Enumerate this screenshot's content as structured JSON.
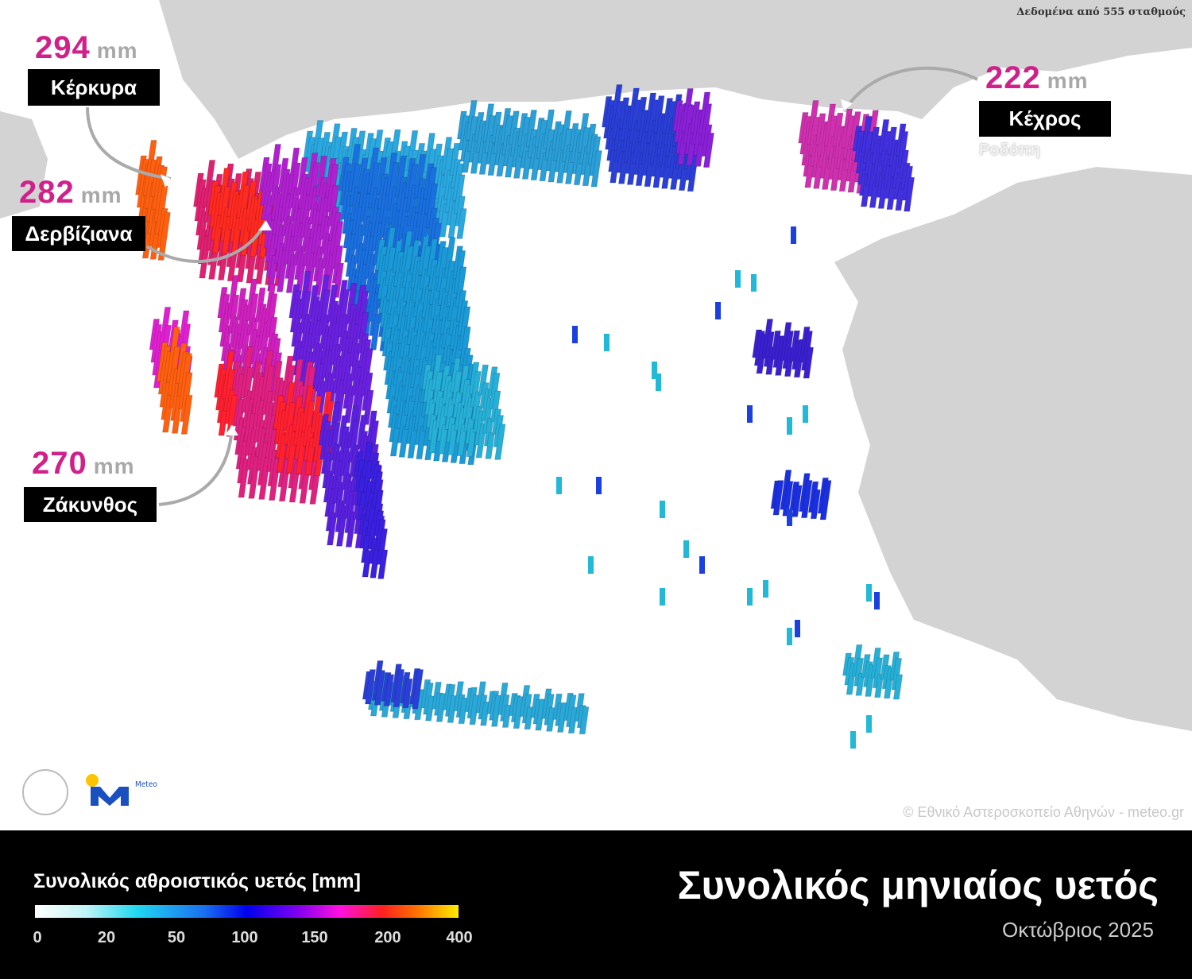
{
  "source_note": "Δεδομένα από 555 σταθμούς",
  "copyright": "© Εθνικό Αστεροσκοπείο Αθηνών - meteo.gr",
  "callouts": [
    {
      "value": "294",
      "unit": "mm",
      "station": "Κέρκυρα"
    },
    {
      "value": "282",
      "unit": "mm",
      "station": "Δερβίζιανα"
    },
    {
      "value": "270",
      "unit": "mm",
      "station": "Ζάκυνθος"
    },
    {
      "value": "222",
      "unit": "mm",
      "station": "Κέχρος",
      "region": "Ροδόπη"
    }
  ],
  "legend": {
    "title": "Συνολικός αθροιστικός υετός [mm]",
    "ticks": [
      "0",
      "20",
      "50",
      "100",
      "150",
      "200",
      "400"
    ],
    "colors": [
      "#ffffff",
      "#20d8f0",
      "#1a6ff0",
      "#0000ee",
      "#8000f0",
      "#ff10e0",
      "#ff2020",
      "#ff7000",
      "#ffee00"
    ]
  },
  "title": "Συνολικός μηνιαίος υετός",
  "subtitle": "Οκτώβριος 2025",
  "logos": {
    "meteo": "Meteo"
  },
  "colors": {
    "land_other": "#d3d3d3",
    "sea": "#ffffff",
    "highlight": "#d0208a",
    "footer": "#000000"
  }
}
